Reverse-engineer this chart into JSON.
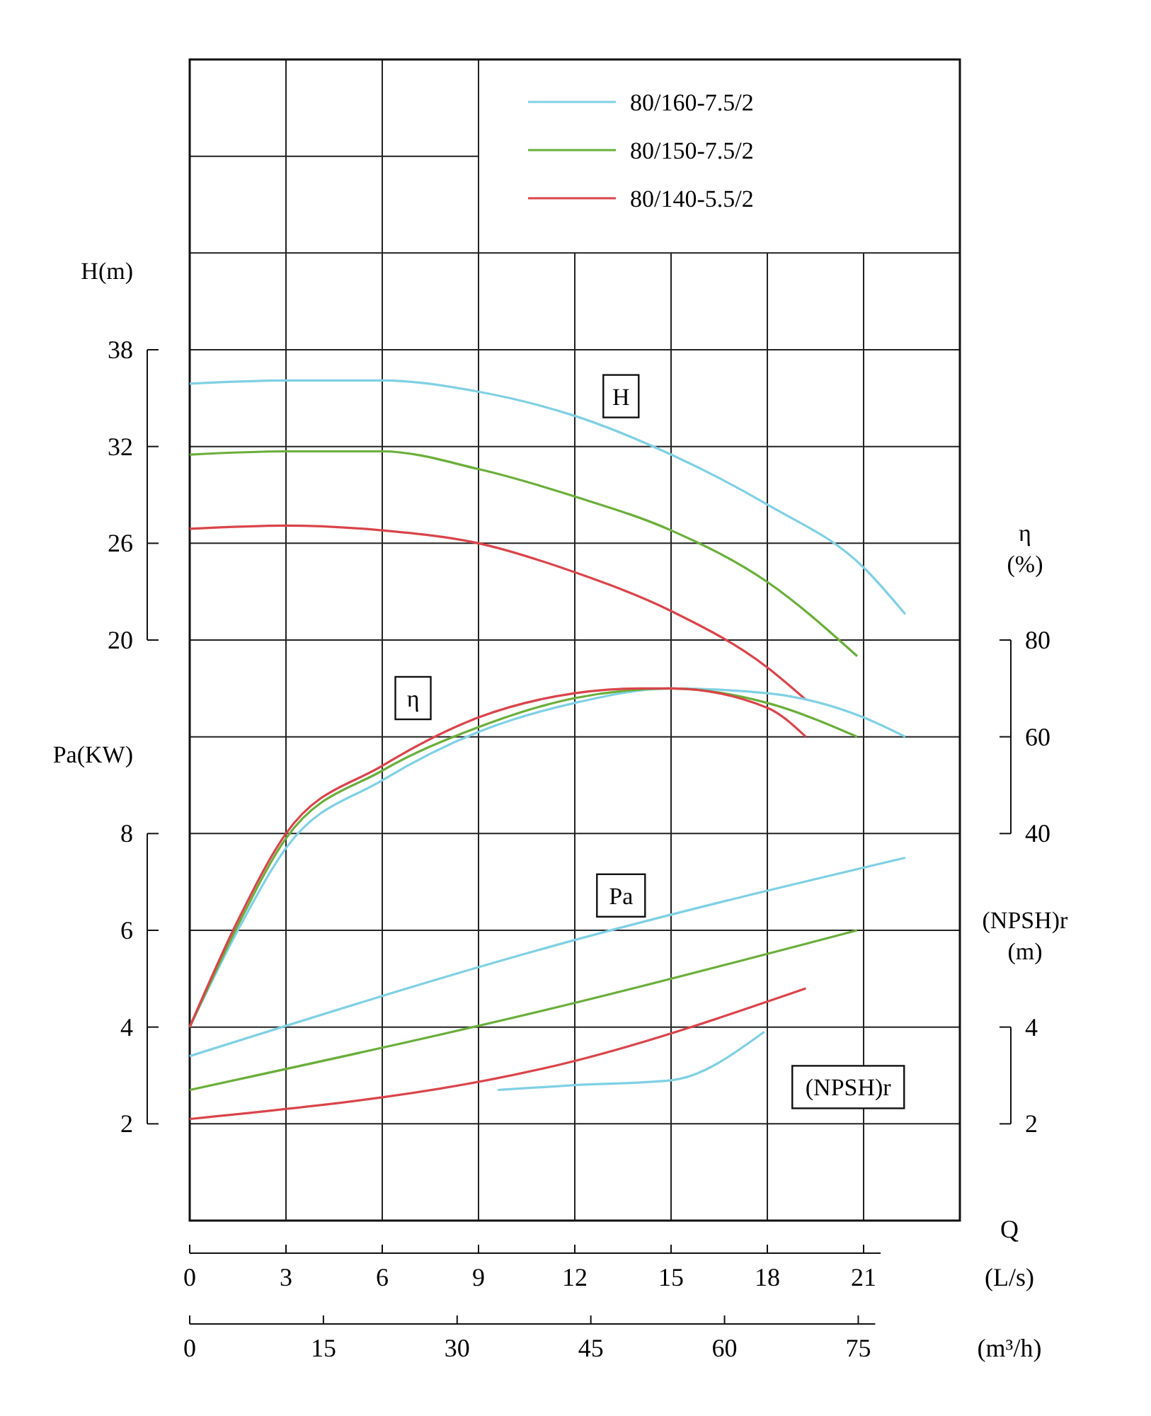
{
  "chart_data": [
    {
      "type": "line",
      "xlabel": "Q (L/s)",
      "ylabel": "H(m)",
      "y2label": "η (%)",
      "y3label": "Pa(KW)",
      "x2label": "(m³/h)",
      "xlim": [
        0,
        24
      ],
      "xticks": [
        0,
        3,
        6,
        9,
        12,
        15,
        18,
        21
      ],
      "x2lim": [
        0,
        86.4
      ],
      "x2ticks": [
        0,
        15,
        30,
        45,
        60,
        75
      ],
      "ylim": [
        -16,
        56
      ],
      "yticks": [
        20,
        26,
        32,
        38
      ],
      "y2lim": [
        -40,
        200
      ],
      "y2ticks": [
        40,
        60,
        80
      ],
      "y3lim": [
        0,
        24
      ],
      "y3ticks": [
        2,
        4,
        6,
        8
      ],
      "grid": true,
      "legend": "top right",
      "annotations": [
        "H",
        "η",
        "Pa"
      ],
      "series": [
        {
          "name": "80/160-7.5/2",
          "color": "#7fd0e4",
          "axis": "y",
          "x": [
            0,
            3,
            6,
            9,
            12,
            15,
            18,
            21,
            22.3
          ],
          "values": [
            35.9,
            36.1,
            36.1,
            35.4,
            33.9,
            31.5,
            28.4,
            24.5,
            21.6
          ]
        },
        {
          "name": "80/150-7.5/2",
          "color": "#6aae3a",
          "axis": "y",
          "x": [
            0,
            3,
            6,
            9,
            12,
            15,
            18,
            20.8
          ],
          "values": [
            31.5,
            31.7,
            31.7,
            30.6,
            28.9,
            26.8,
            23.6,
            19.0
          ]
        },
        {
          "name": "80/140-5.5/2",
          "color": "#d9444a",
          "axis": "y",
          "x": [
            0,
            3,
            6,
            9,
            12,
            15,
            18,
            19.2
          ],
          "values": [
            26.9,
            27.1,
            26.8,
            26.0,
            24.2,
            21.8,
            18.3,
            16.3
          ]
        },
        {
          "color": "#7fd0e4",
          "axis": "y2",
          "x": [
            0,
            1.5,
            3,
            6,
            9,
            12,
            15,
            18,
            21,
            22.3
          ],
          "values": [
            0,
            20,
            37,
            51,
            61,
            67,
            70,
            69,
            64,
            60
          ]
        },
        {
          "color": "#6aae3a",
          "axis": "y2",
          "x": [
            0,
            1.5,
            3,
            6,
            9,
            12,
            15,
            18,
            20.8
          ],
          "values": [
            0,
            21,
            39,
            53,
            62,
            68,
            70,
            67,
            60
          ]
        },
        {
          "color": "#d9444a",
          "axis": "y2",
          "x": [
            0,
            1.5,
            3,
            6,
            9,
            12,
            14,
            15,
            18,
            19.2
          ],
          "values": [
            0,
            22,
            40,
            54,
            64,
            69,
            70,
            70,
            66,
            60
          ]
        },
        {
          "color": "#7fd0e4",
          "axis": "y3",
          "x": [
            0,
            12,
            22.3
          ],
          "values": [
            3.4,
            5.8,
            7.5
          ]
        },
        {
          "color": "#6aae3a",
          "axis": "y3",
          "x": [
            0,
            12,
            20.8
          ],
          "values": [
            2.7,
            4.5,
            6.0
          ]
        },
        {
          "color": "#d9444a",
          "axis": "y3",
          "x": [
            0,
            12,
            19.2
          ],
          "values": [
            2.1,
            3.3,
            4.8
          ]
        }
      ]
    },
    {
      "type": "line",
      "ylabel": "(NPSH)r (m)",
      "xlim": [
        0,
        24
      ],
      "ylim": [
        0,
        24
      ],
      "yticks": [
        2,
        4
      ],
      "tick_labels": "y",
      "annotations": [
        "(NPSH)r"
      ],
      "series": [
        {
          "color": "#7fd0e4",
          "x": [
            9.6,
            12,
            15,
            17.9
          ],
          "values": [
            2.7,
            2.8,
            2.9,
            3.9
          ]
        }
      ]
    }
  ]
}
